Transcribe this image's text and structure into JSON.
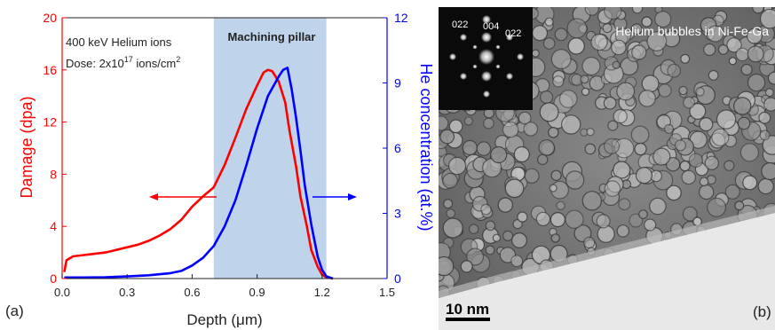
{
  "chart_data": [
    {
      "type": "line",
      "panel_label": "(a)",
      "xlabel": "Depth (μm)",
      "ylabel_left": "Damage (dpa)",
      "ylabel_right": "He concentration (at.%)",
      "xlim": [
        0.0,
        1.5
      ],
      "ylim_left": [
        0,
        20
      ],
      "ylim_right": [
        0,
        12
      ],
      "x_ticks": [
        "0.0",
        "0.3",
        "0.6",
        "0.9",
        "1.2",
        "1.5"
      ],
      "y_ticks_left": [
        "0",
        "4",
        "8",
        "12",
        "16",
        "20"
      ],
      "y_ticks_right": [
        "0",
        "3",
        "6",
        "9",
        "12"
      ],
      "annotations": {
        "ion_line": "400 keV Helium ions",
        "dose_prefix": "Dose: 2x10",
        "dose_exp": "17",
        "dose_suffix": " ions/cm",
        "dose_unit_exp": "2",
        "shaded_label": "Machining pillar"
      },
      "shaded_region": [
        0.7,
        1.22
      ],
      "series": [
        {
          "name": "Damage (dpa)",
          "axis": "left",
          "color": "#ff0000",
          "x": [
            0.01,
            0.02,
            0.05,
            0.1,
            0.15,
            0.2,
            0.25,
            0.3,
            0.35,
            0.4,
            0.45,
            0.5,
            0.55,
            0.6,
            0.65,
            0.7,
            0.75,
            0.8,
            0.85,
            0.9,
            0.93,
            0.95,
            0.97,
            1.0,
            1.03,
            1.05,
            1.08,
            1.1,
            1.13,
            1.15,
            1.18,
            1.2,
            1.22,
            1.25
          ],
          "y": [
            0.5,
            1.4,
            1.7,
            1.8,
            1.9,
            2.0,
            2.2,
            2.4,
            2.6,
            2.9,
            3.3,
            3.8,
            4.5,
            5.5,
            6.3,
            7.0,
            8.7,
            10.8,
            13.0,
            14.8,
            15.8,
            16.0,
            15.9,
            15.1,
            13.5,
            11.3,
            8.6,
            6.3,
            4.0,
            2.2,
            0.9,
            0.3,
            0.1,
            0.0
          ]
        },
        {
          "name": "He concentration (at.%)",
          "axis": "right",
          "color": "#0000ff",
          "x": [
            0.01,
            0.1,
            0.2,
            0.3,
            0.4,
            0.5,
            0.55,
            0.6,
            0.65,
            0.7,
            0.75,
            0.8,
            0.85,
            0.9,
            0.95,
            1.0,
            1.02,
            1.04,
            1.06,
            1.08,
            1.1,
            1.12,
            1.15,
            1.18,
            1.2,
            1.22,
            1.25
          ],
          "y": [
            0.05,
            0.05,
            0.06,
            0.1,
            0.15,
            0.25,
            0.35,
            0.6,
            0.95,
            1.5,
            2.4,
            3.6,
            5.2,
            6.9,
            8.4,
            9.3,
            9.6,
            9.7,
            8.7,
            7.4,
            5.9,
            4.3,
            2.5,
            1.0,
            0.4,
            0.1,
            0.0
          ]
        }
      ],
      "arrows": [
        {
          "direction": "left",
          "color": "#ff0000"
        },
        {
          "direction": "right",
          "color": "#0000ff"
        }
      ]
    },
    {
      "type": "image",
      "panel_label": "(b)",
      "title": "Helium bubbles in Ni-Fe-Ga",
      "scale_bar": "10 nm",
      "diffraction_labels": [
        "022",
        "004",
        "022"
      ]
    }
  ]
}
